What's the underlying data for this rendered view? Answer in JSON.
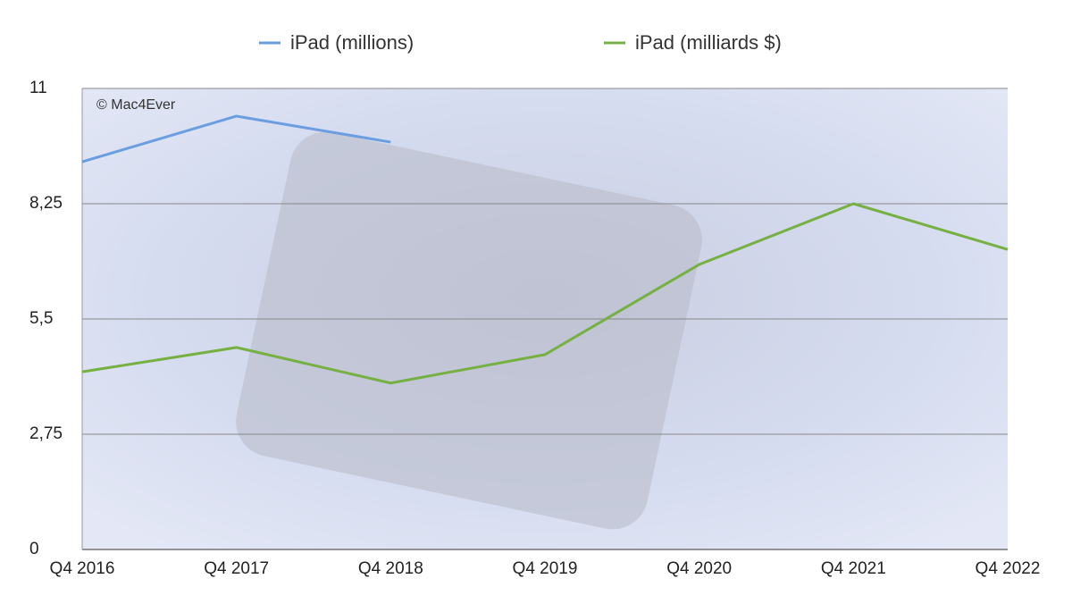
{
  "chart_data": {
    "type": "line",
    "annotation": "© Mac4Ever",
    "categories": [
      "Q4 2016",
      "Q4 2017",
      "Q4 2018",
      "Q4 2019",
      "Q4 2020",
      "Q4 2021",
      "Q4 2022"
    ],
    "series": [
      {
        "name": "iPad (millions)",
        "color": "#6a9ee0",
        "values": [
          9.25,
          10.34,
          9.72,
          null,
          null,
          null,
          null
        ]
      },
      {
        "name": "iPad (milliards $)",
        "color": "#76b043",
        "values": [
          4.24,
          4.82,
          3.97,
          4.65,
          6.8,
          8.25,
          7.16
        ]
      }
    ],
    "ylim": [
      0,
      11
    ],
    "yticks": [
      0,
      {
        "value": 2.75,
        "label": "2,75"
      },
      {
        "value": 5.5,
        "label": "5,5"
      },
      {
        "value": 8.25,
        "label": "8,25"
      },
      11
    ],
    "grid": true
  }
}
